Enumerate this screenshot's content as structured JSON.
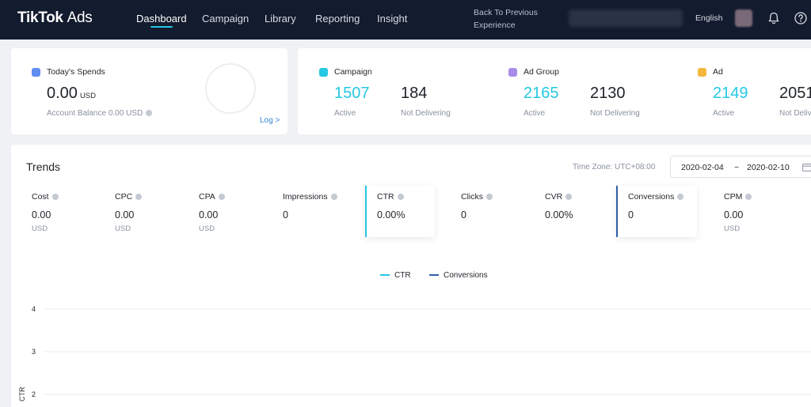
{
  "app": {
    "logo_main": "TikTok",
    "logo_sub": "Ads"
  },
  "nav": {
    "items": [
      {
        "label": "Dashboard",
        "active": true
      },
      {
        "label": "Campaign",
        "active": false
      },
      {
        "label": "Library",
        "active": false
      },
      {
        "label": "Reporting",
        "active": false
      },
      {
        "label": "Insight",
        "active": false
      }
    ],
    "back_line1": "Back To Previous",
    "back_line2": "Experience",
    "language": "English"
  },
  "spend": {
    "title": "Today's Spends",
    "amount": "0.00",
    "unit": "USD",
    "balance": "Account Balance 0.00 USD",
    "log_label": "Log >"
  },
  "stats": [
    {
      "title": "Campaign",
      "active_value": "1507",
      "active_label": "Active",
      "nd_value": "184",
      "nd_label": "Not Delivering",
      "dot_color": "#25c7e3"
    },
    {
      "title": "Ad Group",
      "active_value": "2165",
      "active_label": "Active",
      "nd_value": "2130",
      "nd_label": "Not Delivering",
      "dot_color": "#a98be8"
    },
    {
      "title": "Ad",
      "active_value": "2149",
      "active_label": "Active",
      "nd_value": "2051",
      "nd_label": "Not Delivering",
      "dot_color": "#f3b73c"
    }
  ],
  "trends": {
    "title": "Trends",
    "timezone": "Time Zone: UTC+08:00",
    "date_start": "2020-02-04",
    "date_sep": "~",
    "date_end": "2020-02-10",
    "metrics": [
      {
        "label": "Cost",
        "value": "0.00",
        "unit": "USD"
      },
      {
        "label": "CPC",
        "value": "0.00",
        "unit": "USD"
      },
      {
        "label": "CPA",
        "value": "0.00",
        "unit": "USD"
      },
      {
        "label": "Impressions",
        "value": "0",
        "unit": ""
      },
      {
        "label": "CTR",
        "value": "0.00%",
        "unit": "",
        "selected": true
      },
      {
        "label": "Clicks",
        "value": "0",
        "unit": ""
      },
      {
        "label": "CVR",
        "value": "0.00%",
        "unit": ""
      },
      {
        "label": "Conversions",
        "value": "0",
        "unit": "",
        "selected": true
      },
      {
        "label": "CPM",
        "value": "0.00",
        "unit": "USD"
      }
    ]
  },
  "colors": {
    "accent": "#25c7e3",
    "conversions": "#2f5fa8",
    "nav_bg": "#131b2e"
  },
  "chart_data": {
    "type": "line",
    "series": [
      {
        "name": "CTR",
        "values": []
      },
      {
        "name": "Conversions",
        "values": []
      }
    ],
    "ylabel": "CTR",
    "y_ticks": [
      "4",
      "3",
      "2"
    ],
    "ylim": [
      2,
      4
    ],
    "grid": true,
    "legend_placement": "top-center"
  }
}
